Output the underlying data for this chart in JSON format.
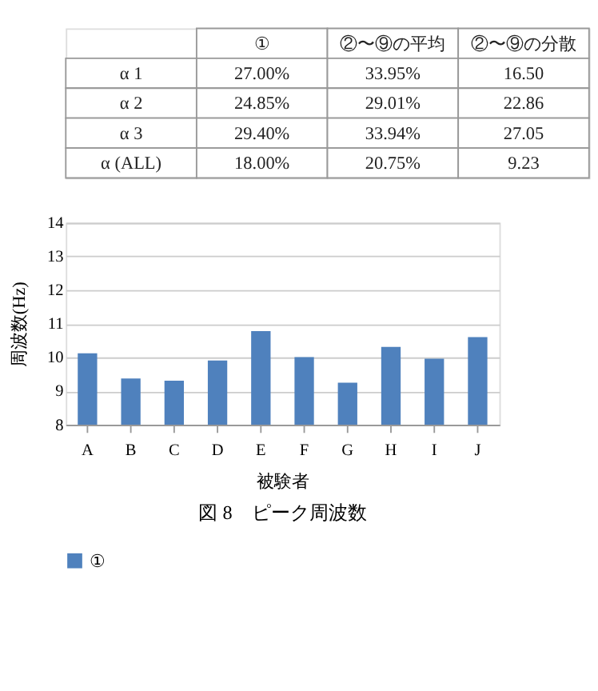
{
  "chart_data": [
    {
      "type": "other",
      "categories": [
        null,
        "①",
        "②〜⑨の平均",
        "②〜⑨の分散"
      ],
      "y_categories": [
        "α 1",
        "α 2",
        "α 3",
        "α (ALL)"
      ],
      "cell_labels": [
        [
          "27.00%",
          "33.95%",
          "16.50"
        ],
        [
          "24.85%",
          "29.01%",
          "22.86"
        ],
        [
          "29.40%",
          "33.94%",
          "27.05"
        ],
        [
          "18.00%",
          "20.75%",
          "9.23"
        ]
      ]
    },
    {
      "type": "bar",
      "title": "図 8　ピーク周波数",
      "xlabel": "被験者",
      "ylabel": "周波数(Hz)",
      "categories": [
        "A",
        "B",
        "C",
        "D",
        "E",
        "F",
        "G",
        "H",
        "I",
        "J"
      ],
      "series": [
        {
          "name": "①",
          "color": "#4f81bd",
          "values": [
            10.12,
            9.37,
            9.31,
            9.91,
            10.78,
            10.01,
            9.25,
            10.31,
            9.96,
            10.6
          ]
        }
      ],
      "ylim": [
        8,
        14
      ],
      "yticks": [
        8,
        9,
        10,
        11,
        12,
        13,
        14
      ],
      "grid": "y",
      "legend": "bottom"
    }
  ]
}
